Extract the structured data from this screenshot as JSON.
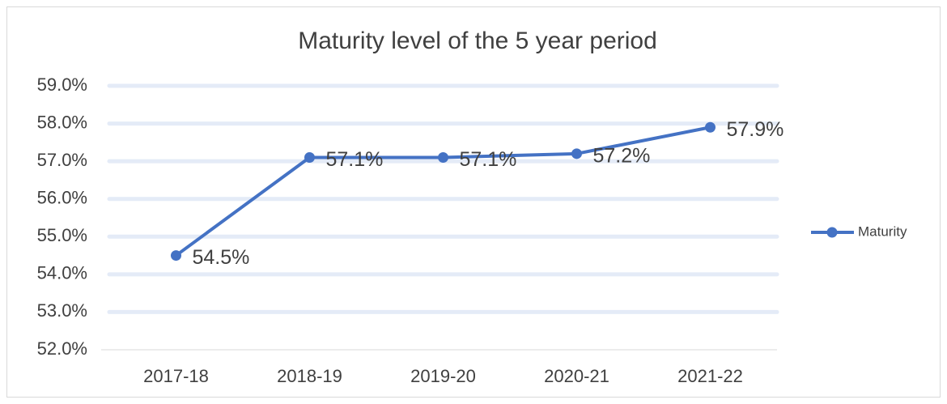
{
  "chart_data": {
    "type": "line",
    "title": "Maturity level of the 5 year period",
    "categories": [
      "2017-18",
      "2018-19",
      "2019-20",
      "2020-21",
      "2021-22"
    ],
    "series": [
      {
        "name": "Maturity",
        "color": "#4472c4",
        "values": [
          54.5,
          57.1,
          57.1,
          57.2,
          57.9
        ],
        "value_labels": [
          "54.5%",
          "57.1%",
          "57.1%",
          "57.2%",
          "57.9%"
        ]
      }
    ],
    "ylim": [
      52,
      59
    ],
    "yticks": [
      {
        "value": 52,
        "label": "52.0%"
      },
      {
        "value": 53,
        "label": "53.0%"
      },
      {
        "value": 54,
        "label": "54.0%"
      },
      {
        "value": 55,
        "label": "55.0%"
      },
      {
        "value": 56,
        "label": "56.0%"
      },
      {
        "value": 57,
        "label": "57.0%"
      },
      {
        "value": 58,
        "label": "58.0%"
      },
      {
        "value": 59,
        "label": "59.0%"
      }
    ],
    "grid": true,
    "legend": "right"
  }
}
